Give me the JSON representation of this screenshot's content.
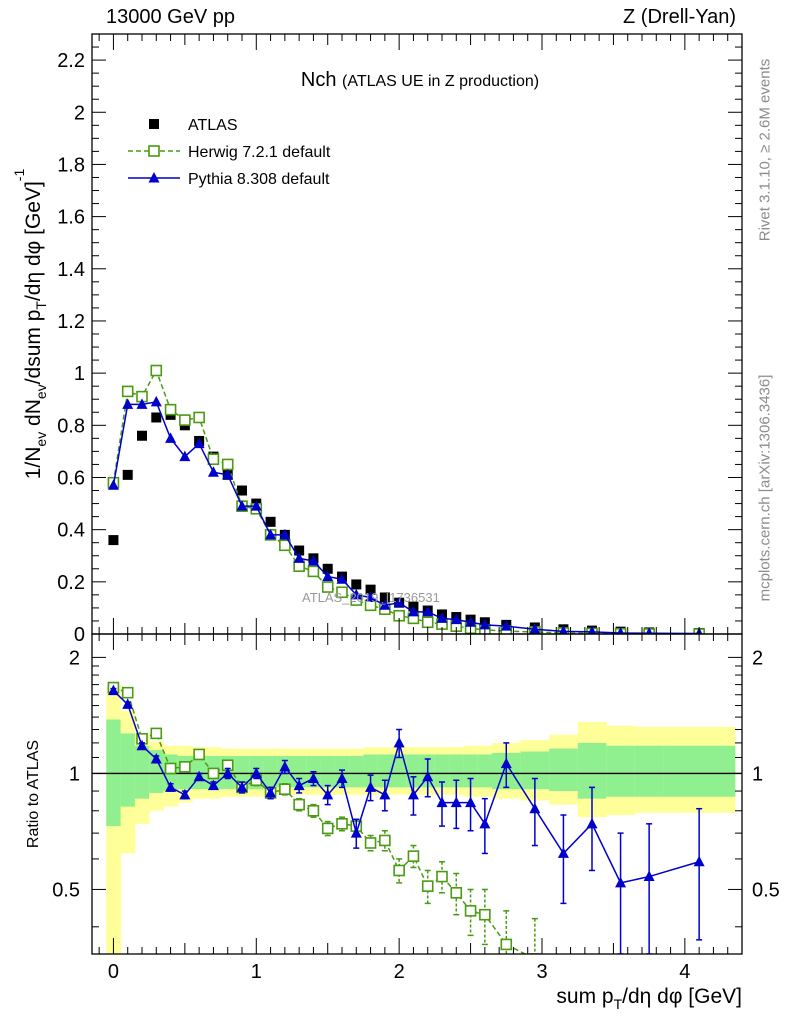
{
  "header": {
    "left": "13000 GeV pp",
    "right": "Z (Drell-Yan)"
  },
  "side_labels": {
    "rivet": "Rivet 3.1.10, ≥ 2.6M events",
    "mcplots": "mcplots.cern.ch [arXiv:1306.3436]"
  },
  "watermark": "ATLAS_2019_I1736531",
  "chart_data": [
    {
      "type": "scatter",
      "panel": "main",
      "title": "Nch",
      "subtitle": "(ATLAS UE in Z production)",
      "ylabel": "1/Nev dNev/dsum pT/dη dφ [GeV]^-1",
      "xlim": [
        -0.15,
        4.4
      ],
      "ylim": [
        0,
        2.3
      ],
      "yticks": [
        0,
        0.2,
        0.4,
        0.6,
        0.8,
        1,
        1.2,
        1.4,
        1.6,
        1.8,
        2,
        2.2
      ],
      "ytick_labels": [
        "0",
        "0.2",
        "0.4",
        "0.6",
        "0.8",
        "1",
        "1.2",
        "1.4",
        "1.6",
        "1.8",
        "2",
        "2.2"
      ],
      "legend_position": "top-left",
      "series": [
        {
          "name": "ATLAS",
          "color": "#000000",
          "marker": "filled-square",
          "points": [
            [
              0,
              0.36
            ],
            [
              0.1,
              0.61
            ],
            [
              0.2,
              0.76
            ],
            [
              0.3,
              0.83
            ],
            [
              0.4,
              0.84
            ],
            [
              0.5,
              0.8
            ],
            [
              0.6,
              0.74
            ],
            [
              0.7,
              0.68
            ],
            [
              0.8,
              0.61
            ],
            [
              0.9,
              0.55
            ],
            [
              1.0,
              0.5
            ],
            [
              1.1,
              0.43
            ],
            [
              1.2,
              0.38
            ],
            [
              1.3,
              0.32
            ],
            [
              1.4,
              0.29
            ],
            [
              1.5,
              0.25
            ],
            [
              1.6,
              0.22
            ],
            [
              1.7,
              0.19
            ],
            [
              1.8,
              0.17
            ],
            [
              1.9,
              0.14
            ],
            [
              2.0,
              0.12
            ],
            [
              2.1,
              0.105
            ],
            [
              2.2,
              0.09
            ],
            [
              2.3,
              0.075
            ],
            [
              2.4,
              0.065
            ],
            [
              2.5,
              0.055
            ],
            [
              2.6,
              0.045
            ],
            [
              2.75,
              0.035
            ],
            [
              2.95,
              0.025
            ],
            [
              3.15,
              0.018
            ],
            [
              3.35,
              0.013
            ],
            [
              3.55,
              0.009
            ],
            [
              3.75,
              0.006
            ],
            [
              4.1,
              0.004
            ]
          ]
        },
        {
          "name": "Herwig 7.2.1 default",
          "color": "#4a9a12",
          "marker": "open-square",
          "line": "dashed",
          "points": [
            [
              0,
              0.58
            ],
            [
              0.1,
              0.93
            ],
            [
              0.2,
              0.91
            ],
            [
              0.3,
              1.01
            ],
            [
              0.4,
              0.86
            ],
            [
              0.5,
              0.82
            ],
            [
              0.6,
              0.83
            ],
            [
              0.7,
              0.67
            ],
            [
              0.8,
              0.65
            ],
            [
              0.9,
              0.49
            ],
            [
              1.0,
              0.48
            ],
            [
              1.1,
              0.38
            ],
            [
              1.2,
              0.34
            ],
            [
              1.3,
              0.26
            ],
            [
              1.4,
              0.24
            ],
            [
              1.5,
              0.18
            ],
            [
              1.6,
              0.16
            ],
            [
              1.7,
              0.13
            ],
            [
              1.8,
              0.11
            ],
            [
              1.9,
              0.095
            ],
            [
              2.0,
              0.07
            ],
            [
              2.1,
              0.06
            ],
            [
              2.2,
              0.045
            ],
            [
              2.3,
              0.038
            ],
            [
              2.4,
              0.03
            ],
            [
              2.5,
              0.022
            ],
            [
              2.6,
              0.016
            ],
            [
              2.75,
              0.011
            ],
            [
              2.95,
              0.008
            ],
            [
              3.15,
              0.004
            ],
            [
              3.35,
              0.002
            ],
            [
              3.55,
              0.0008
            ],
            [
              3.75,
              0.0002
            ],
            [
              4.1,
              0.0001
            ]
          ]
        },
        {
          "name": "Pythia 8.308 default",
          "color": "#0000cc",
          "marker": "filled-triangle",
          "line": "solid",
          "points": [
            [
              0,
              0.57
            ],
            [
              0.1,
              0.88
            ],
            [
              0.2,
              0.88
            ],
            [
              0.3,
              0.89
            ],
            [
              0.4,
              0.75
            ],
            [
              0.5,
              0.68
            ],
            [
              0.6,
              0.73
            ],
            [
              0.7,
              0.62
            ],
            [
              0.8,
              0.61
            ],
            [
              0.9,
              0.49
            ],
            [
              1.0,
              0.49
            ],
            [
              1.1,
              0.38
            ],
            [
              1.2,
              0.38
            ],
            [
              1.3,
              0.29
            ],
            [
              1.4,
              0.28
            ],
            [
              1.5,
              0.22
            ],
            [
              1.6,
              0.21
            ],
            [
              1.7,
              0.15
            ],
            [
              1.8,
              0.14
            ],
            [
              1.9,
              0.11
            ],
            [
              2.0,
              0.12
            ],
            [
              2.1,
              0.085
            ],
            [
              2.2,
              0.085
            ],
            [
              2.3,
              0.06
            ],
            [
              2.4,
              0.055
            ],
            [
              2.5,
              0.045
            ],
            [
              2.6,
              0.035
            ],
            [
              2.75,
              0.03
            ],
            [
              2.95,
              0.018
            ],
            [
              3.15,
              0.01
            ],
            [
              3.35,
              0.008
            ],
            [
              3.55,
              0.004
            ],
            [
              3.75,
              0.003
            ],
            [
              4.1,
              0.002
            ]
          ]
        }
      ]
    },
    {
      "type": "scatter",
      "panel": "ratio",
      "ylabel": "Ratio to ATLAS",
      "xlabel": "sum pT/dη dφ [GeV]",
      "xlim": [
        -0.15,
        4.4
      ],
      "ylim": [
        0.34,
        2.3
      ],
      "yscale": "log",
      "yticks": [
        0.5,
        1,
        2
      ],
      "ytick_labels": [
        "0.5",
        "1",
        "2"
      ],
      "xticks": [
        0,
        1,
        2,
        3,
        4
      ],
      "xtick_labels": [
        "0",
        "1",
        "2",
        "3",
        "4"
      ],
      "reference_line": 1,
      "uncertainty_bands": {
        "bin_edges": [
          -0.05,
          0.05,
          0.15,
          0.25,
          0.35,
          0.45,
          0.55,
          0.65,
          0.75,
          0.85,
          0.95,
          1.05,
          1.15,
          1.25,
          1.35,
          1.45,
          1.55,
          1.65,
          1.75,
          1.85,
          1.95,
          2.05,
          2.15,
          2.25,
          2.35,
          2.45,
          2.55,
          2.65,
          2.85,
          3.05,
          3.25,
          3.45,
          3.65,
          3.85,
          4.35
        ],
        "inner": [
          [
            0.73,
            1.38
          ],
          [
            0.82,
            1.27
          ],
          [
            0.86,
            1.18
          ],
          [
            0.89,
            1.15
          ],
          [
            0.9,
            1.12
          ],
          [
            0.91,
            1.11
          ],
          [
            0.91,
            1.11
          ],
          [
            0.91,
            1.11
          ],
          [
            0.91,
            1.11
          ],
          [
            0.91,
            1.11
          ],
          [
            0.91,
            1.11
          ],
          [
            0.92,
            1.11
          ],
          [
            0.92,
            1.11
          ],
          [
            0.92,
            1.11
          ],
          [
            0.92,
            1.11
          ],
          [
            0.92,
            1.11
          ],
          [
            0.92,
            1.11
          ],
          [
            0.92,
            1.11
          ],
          [
            0.92,
            1.12
          ],
          [
            0.92,
            1.12
          ],
          [
            0.92,
            1.12
          ],
          [
            0.92,
            1.12
          ],
          [
            0.92,
            1.12
          ],
          [
            0.92,
            1.12
          ],
          [
            0.92,
            1.12
          ],
          [
            0.92,
            1.12
          ],
          [
            0.92,
            1.12
          ],
          [
            0.91,
            1.13
          ],
          [
            0.91,
            1.14
          ],
          [
            0.9,
            1.16
          ],
          [
            0.86,
            1.2
          ],
          [
            0.87,
            1.18
          ],
          [
            0.87,
            1.18
          ],
          [
            0.87,
            1.18
          ]
        ],
        "outer": [
          [
            0.28,
            1.68
          ],
          [
            0.62,
            1.45
          ],
          [
            0.74,
            1.27
          ],
          [
            0.8,
            1.21
          ],
          [
            0.82,
            1.18
          ],
          [
            0.84,
            1.18
          ],
          [
            0.86,
            1.17
          ],
          [
            0.86,
            1.17
          ],
          [
            0.87,
            1.16
          ],
          [
            0.87,
            1.16
          ],
          [
            0.87,
            1.16
          ],
          [
            0.88,
            1.16
          ],
          [
            0.88,
            1.16
          ],
          [
            0.88,
            1.16
          ],
          [
            0.88,
            1.16
          ],
          [
            0.88,
            1.16
          ],
          [
            0.88,
            1.16
          ],
          [
            0.88,
            1.16
          ],
          [
            0.88,
            1.17
          ],
          [
            0.88,
            1.17
          ],
          [
            0.88,
            1.17
          ],
          [
            0.88,
            1.17
          ],
          [
            0.88,
            1.17
          ],
          [
            0.88,
            1.17
          ],
          [
            0.88,
            1.17
          ],
          [
            0.87,
            1.18
          ],
          [
            0.87,
            1.18
          ],
          [
            0.86,
            1.2
          ],
          [
            0.85,
            1.22
          ],
          [
            0.83,
            1.26
          ],
          [
            0.77,
            1.36
          ],
          [
            0.78,
            1.33
          ],
          [
            0.79,
            1.32
          ],
          [
            0.79,
            1.32
          ]
        ]
      },
      "series": [
        {
          "name": "Herwig 7.2.1 default",
          "color": "#4a9a12",
          "marker": "open-square",
          "line": "dashed",
          "points": [
            [
              0,
              1.67,
              0.02
            ],
            [
              0.1,
              1.62,
              0.02
            ],
            [
              0.2,
              1.23,
              0.02
            ],
            [
              0.3,
              1.27,
              0.02
            ],
            [
              0.4,
              1.03,
              0.02
            ],
            [
              0.5,
              1.04,
              0.02
            ],
            [
              0.6,
              1.12,
              0.02
            ],
            [
              0.7,
              1.0,
              0.02
            ],
            [
              0.8,
              1.05,
              0.02
            ],
            [
              0.9,
              0.92,
              0.02
            ],
            [
              1.0,
              0.96,
              0.03
            ],
            [
              1.1,
              0.89,
              0.03
            ],
            [
              1.2,
              0.91,
              0.03
            ],
            [
              1.3,
              0.83,
              0.03
            ],
            [
              1.4,
              0.8,
              0.03
            ],
            [
              1.5,
              0.72,
              0.03
            ],
            [
              1.6,
              0.74,
              0.03
            ],
            [
              1.7,
              0.73,
              0.03
            ],
            [
              1.8,
              0.66,
              0.03
            ],
            [
              1.9,
              0.67,
              0.04
            ],
            [
              2.0,
              0.56,
              0.04
            ],
            [
              2.1,
              0.61,
              0.04
            ],
            [
              2.2,
              0.51,
              0.05
            ],
            [
              2.3,
              0.54,
              0.05
            ],
            [
              2.4,
              0.49,
              0.06
            ],
            [
              2.5,
              0.44,
              0.06
            ],
            [
              2.6,
              0.43,
              0.07
            ],
            [
              2.75,
              0.36,
              0.08
            ],
            [
              2.95,
              0.33,
              0.09
            ]
          ]
        },
        {
          "name": "Pythia 8.308 default",
          "color": "#0000cc",
          "marker": "filled-triangle",
          "line": "solid",
          "points": [
            [
              0,
              1.64,
              0.02
            ],
            [
              0.1,
              1.51,
              0.02
            ],
            [
              0.2,
              1.18,
              0.02
            ],
            [
              0.3,
              1.09,
              0.02
            ],
            [
              0.4,
              0.92,
              0.02
            ],
            [
              0.5,
              0.88,
              0.02
            ],
            [
              0.6,
              0.98,
              0.02
            ],
            [
              0.7,
              0.93,
              0.02
            ],
            [
              0.8,
              1.0,
              0.03
            ],
            [
              0.9,
              0.92,
              0.03
            ],
            [
              1.0,
              1.0,
              0.03
            ],
            [
              1.1,
              0.89,
              0.03
            ],
            [
              1.2,
              1.04,
              0.04
            ],
            [
              1.3,
              0.93,
              0.04
            ],
            [
              1.4,
              0.97,
              0.04
            ],
            [
              1.5,
              0.88,
              0.05
            ],
            [
              1.6,
              0.97,
              0.05
            ],
            [
              1.7,
              0.7,
              0.06
            ],
            [
              1.8,
              0.92,
              0.07
            ],
            [
              1.9,
              0.88,
              0.08
            ],
            [
              2.0,
              1.2,
              0.1
            ],
            [
              2.1,
              0.88,
              0.1
            ],
            [
              2.2,
              0.98,
              0.11
            ],
            [
              2.3,
              0.84,
              0.11
            ],
            [
              2.4,
              0.84,
              0.12
            ],
            [
              2.5,
              0.84,
              0.13
            ],
            [
              2.6,
              0.74,
              0.12
            ],
            [
              2.75,
              1.06,
              0.14
            ],
            [
              2.95,
              0.81,
              0.16
            ],
            [
              3.15,
              0.62,
              0.16
            ],
            [
              3.35,
              0.74,
              0.18
            ],
            [
              3.55,
              0.52,
              0.18
            ],
            [
              3.75,
              0.54,
              0.2
            ],
            [
              4.1,
              0.59,
              0.22
            ]
          ]
        }
      ]
    }
  ]
}
